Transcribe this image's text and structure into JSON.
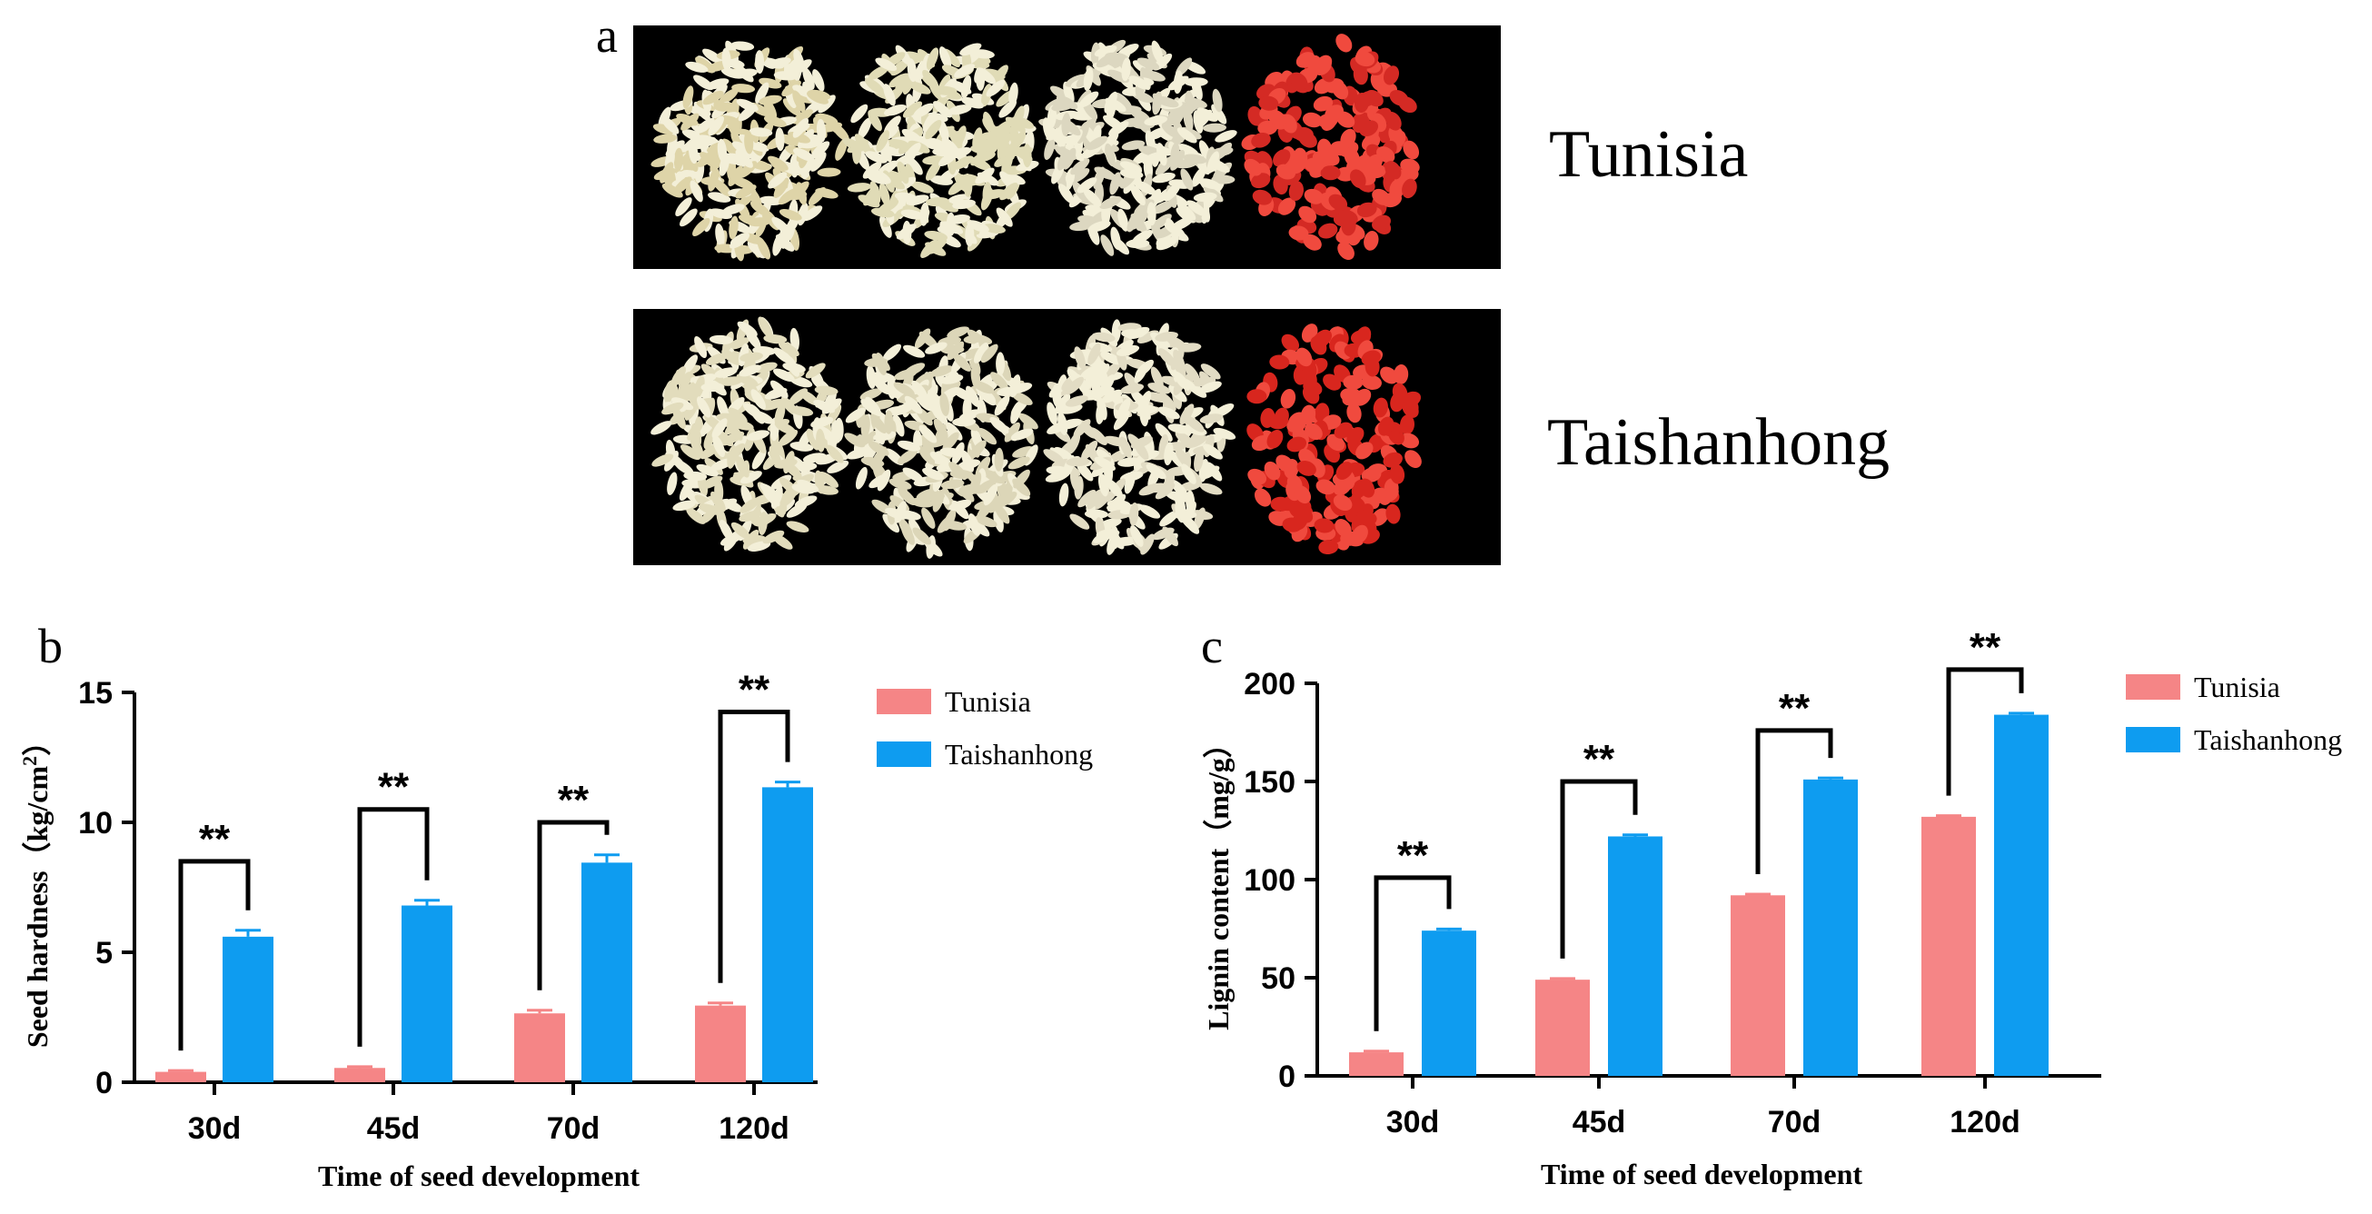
{
  "figure": {
    "panel_labels": [
      "a",
      "b",
      "c"
    ],
    "photo_rows": [
      {
        "label": "Tunisia",
        "samples": [
          {
            "color": "#ded4a8"
          },
          {
            "color": "#e0dbb6"
          },
          {
            "color": "#dcd7c0"
          },
          {
            "color": "#d42a24"
          }
        ]
      },
      {
        "label": "Taishanhong",
        "samples": [
          {
            "color": "#e2dcbc"
          },
          {
            "color": "#dcd6b8"
          },
          {
            "color": "#e2dcc4"
          },
          {
            "color": "#d8261e"
          }
        ]
      }
    ]
  },
  "colors": {
    "tunisia": "#f58586",
    "taishanhong": "#0e9cf0",
    "photo_bg": "#000000"
  },
  "chart_data": [
    {
      "type": "bar",
      "title": "",
      "xlabel": "Time of seed development",
      "ylabel": "Seed hardness（kg/cm",
      "ylabel_sup": "2",
      "ylabel_close": "）",
      "categories": [
        "30d",
        "45d",
        "70d",
        "120d"
      ],
      "ylim": [
        0,
        15
      ],
      "yticks": [
        0,
        5,
        10,
        15
      ],
      "legend": "top-right",
      "grid": false,
      "series": [
        {
          "name": "Tunisia",
          "values": [
            0.4,
            0.55,
            2.65,
            2.95
          ],
          "errors": [
            0.05,
            0.05,
            0.12,
            0.1
          ]
        },
        {
          "name": "Taishanhong",
          "values": [
            5.6,
            6.8,
            8.45,
            11.35
          ],
          "errors": [
            0.25,
            0.2,
            0.3,
            0.2
          ]
        }
      ],
      "annotations": [
        {
          "text": "**",
          "category": "30d",
          "level": 8.5
        },
        {
          "text": "**",
          "category": "45d",
          "level": 10.5
        },
        {
          "text": "**",
          "category": "70d",
          "level": 10.0
        },
        {
          "text": "**",
          "category": "120d",
          "level": 14.25
        }
      ]
    },
    {
      "type": "bar",
      "title": "",
      "xlabel": "Time of seed development",
      "ylabel": "Lignin content（mg/g）",
      "categories": [
        "30d",
        "45d",
        "70d",
        "120d"
      ],
      "ylim": [
        0,
        200
      ],
      "yticks": [
        0,
        50,
        100,
        150,
        200
      ],
      "legend": "top-right",
      "grid": false,
      "series": [
        {
          "name": "Tunisia",
          "values": [
            12,
            49,
            92,
            132
          ],
          "errors": [
            0.6,
            0.6,
            0.6,
            0.6
          ]
        },
        {
          "name": "Taishanhong",
          "values": [
            74,
            122,
            151,
            184
          ],
          "errors": [
            0.8,
            0.8,
            0.8,
            0.8
          ]
        }
      ],
      "annotations": [
        {
          "text": "**",
          "category": "30d",
          "level": 101
        },
        {
          "text": "**",
          "category": "45d",
          "level": 150
        },
        {
          "text": "**",
          "category": "70d",
          "level": 176
        },
        {
          "text": "**",
          "category": "120d",
          "level": 207
        }
      ]
    }
  ]
}
